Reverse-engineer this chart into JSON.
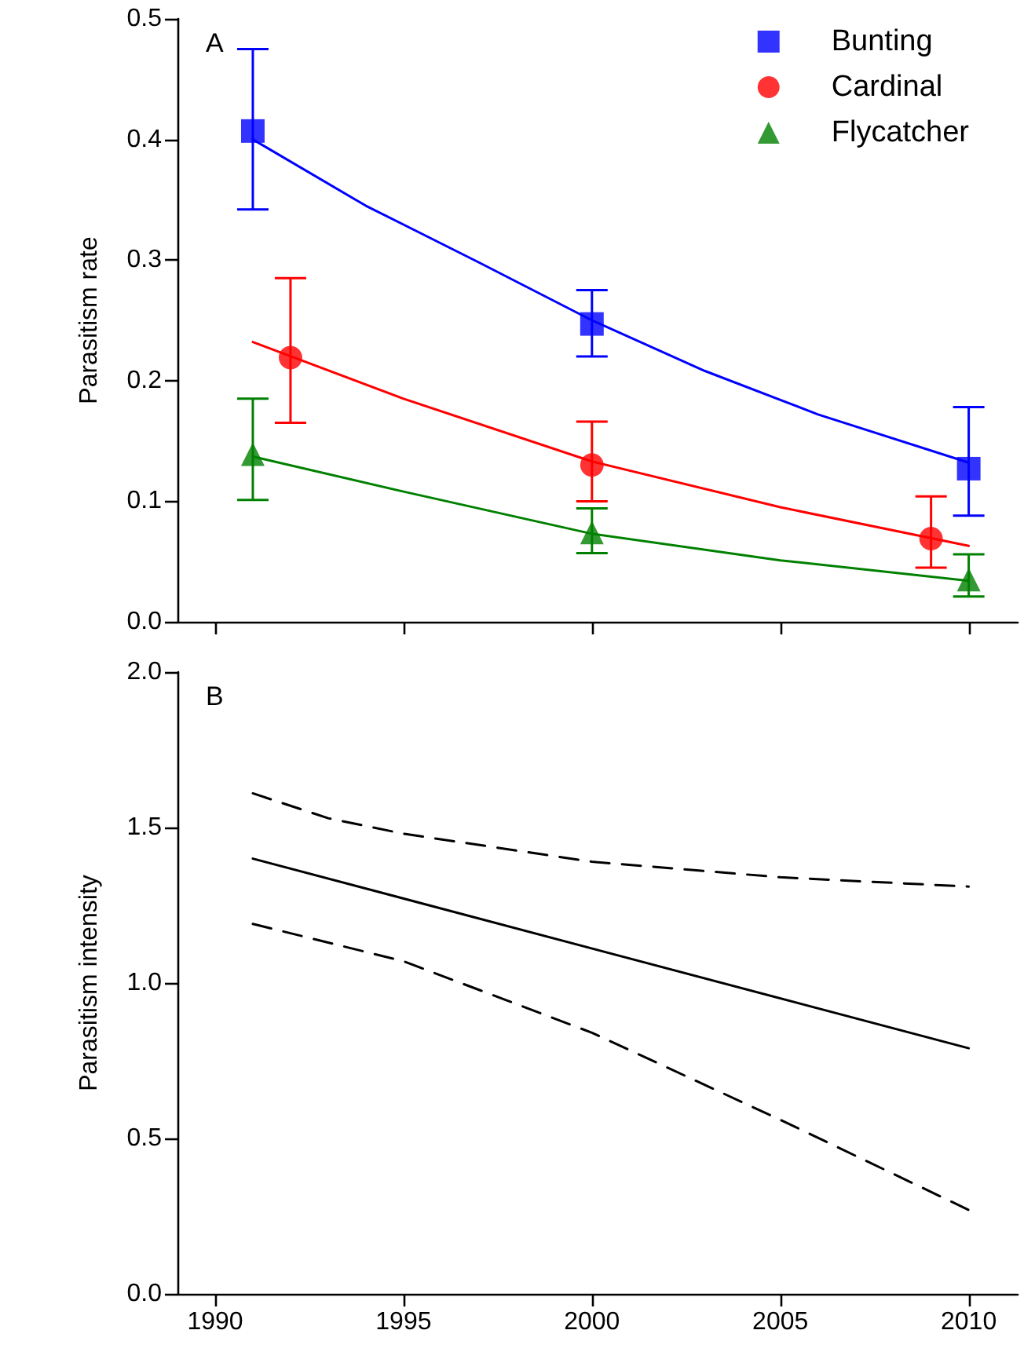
{
  "chart_data": [
    {
      "type": "scatter",
      "title": "A",
      "ylabel": "Parasitism rate",
      "xlim": [
        1989,
        2011.3
      ],
      "xticks": [
        1990,
        1995,
        2000,
        2005,
        2010
      ],
      "ylim": [
        0,
        0.5
      ],
      "yticks": [
        {
          "value": 0,
          "label": "0.0"
        },
        0.1,
        0.2,
        0.3,
        0.4,
        0.5
      ],
      "tick_labels": "y",
      "grid": false,
      "legend": "top right",
      "series": [
        {
          "name": "Bunting",
          "color": "#0000ff",
          "marker": "square",
          "x": [
            1991,
            2000,
            2010
          ],
          "values": [
            0.407,
            0.247,
            0.127
          ],
          "errors": [
            [
              0.342,
              0.475
            ],
            [
              0.22,
              0.275
            ],
            [
              0.088,
              0.178
            ]
          ]
        },
        {
          "name": "Cardinal",
          "color": "#ff0000",
          "marker": "circle",
          "x": [
            1992,
            2000,
            2009
          ],
          "values": [
            0.219,
            0.13,
            0.069
          ],
          "errors": [
            [
              0.165,
              0.285
            ],
            [
              0.1,
              0.166
            ],
            [
              0.045,
              0.104
            ]
          ]
        },
        {
          "name": "Flycatcher",
          "color": "#008000",
          "marker": "triangle",
          "x": [
            1991,
            2000,
            2010
          ],
          "values": [
            0.139,
            0.074,
            0.035
          ],
          "errors": [
            [
              0.101,
              0.185
            ],
            [
              0.057,
              0.094
            ],
            [
              0.021,
              0.056
            ]
          ]
        },
        {
          "type": "line",
          "color": "#0000ff",
          "marker": "none",
          "line_style": "solid",
          "x": [
            1991,
            1994,
            1997,
            2000,
            2003,
            2006,
            2010
          ],
          "values": [
            0.4,
            0.345,
            0.298,
            0.25,
            0.208,
            0.172,
            0.132
          ]
        },
        {
          "type": "line",
          "color": "#ff0000",
          "marker": "none",
          "line_style": "solid",
          "x": [
            1991,
            1995,
            2000,
            2005,
            2010
          ],
          "values": [
            0.232,
            0.185,
            0.133,
            0.095,
            0.063
          ]
        },
        {
          "type": "line",
          "color": "#008000",
          "marker": "none",
          "line_style": "solid",
          "x": [
            1991,
            1995,
            2000,
            2005,
            2010
          ],
          "values": [
            0.137,
            0.108,
            0.073,
            0.051,
            0.034
          ]
        }
      ]
    },
    {
      "type": "line",
      "title": "B",
      "ylabel": "Parasitism intensity",
      "xlim": [
        1989,
        2011.3
      ],
      "xticks": [
        1990,
        1995,
        2000,
        2005,
        2010
      ],
      "ylim": [
        0,
        2
      ],
      "yticks": [
        {
          "value": 0,
          "label": "0.0"
        },
        0.5,
        {
          "value": 1,
          "label": "1.0"
        },
        1.5,
        {
          "value": 2,
          "label": "2.0"
        }
      ],
      "grid": false,
      "legend": false,
      "marker": "none",
      "series": [
        {
          "color": "#000000",
          "line_style": "solid",
          "x": [
            1991,
            2010
          ],
          "values": [
            1.4,
            0.79
          ]
        },
        {
          "color": "#000000",
          "line_style": "dashed",
          "x": [
            1991,
            1993,
            1995,
            2000,
            2005,
            2010
          ],
          "values": [
            1.61,
            1.53,
            1.48,
            1.39,
            1.34,
            1.31
          ]
        },
        {
          "color": "#000000",
          "line_style": "dashed",
          "x": [
            1991,
            1995,
            2000,
            2005,
            2010
          ],
          "values": [
            1.19,
            1.07,
            0.84,
            0.56,
            0.27
          ]
        }
      ]
    }
  ]
}
